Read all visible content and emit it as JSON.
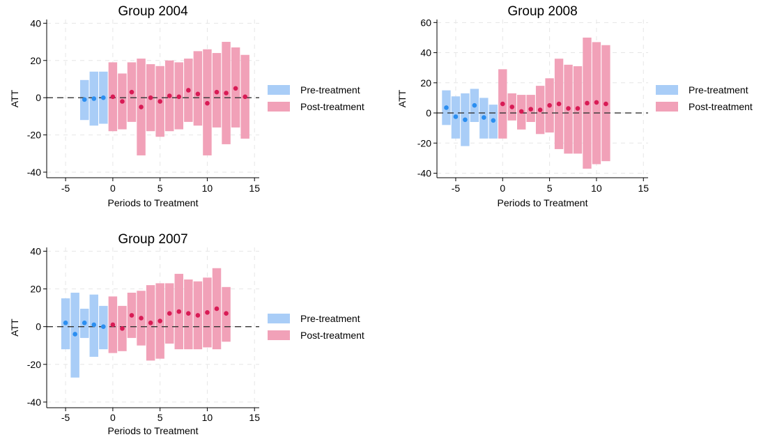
{
  "colors": {
    "pre_bar": "#a9cdf7",
    "post_bar": "#f1a1b8",
    "pre_point": "#2b8ef0",
    "post_point": "#d81b55",
    "grid": "#e6e6e6",
    "axis": "#000000",
    "zero_line": "#333333"
  },
  "chart_data": [
    {
      "type": "bar",
      "title": "Group 2004",
      "xlabel": "Periods to Treatment",
      "ylabel": "ATT",
      "xticks": [
        "-5",
        "0",
        "5",
        "10",
        "15"
      ],
      "yticks": [
        "40",
        "20",
        "0",
        "-20",
        "-40"
      ],
      "xlim": [
        -7,
        15.5
      ],
      "ylim": [
        -43,
        42
      ],
      "grid": true,
      "legend_position": "right",
      "legend": [
        "Pre-treatment",
        "Post-treatment"
      ],
      "series": [
        {
          "name": "Pre-treatment",
          "x": [
            -3,
            -2,
            -1
          ],
          "att": [
            -1,
            -0.5,
            0
          ],
          "ci_low": [
            -12,
            -15,
            -14
          ],
          "ci_high": [
            9.5,
            14,
            14
          ]
        },
        {
          "name": "Post-treatment",
          "x": [
            0,
            1,
            2,
            3,
            4,
            5,
            6,
            7,
            8,
            9,
            10,
            11,
            12,
            13,
            14
          ],
          "att": [
            0.5,
            -2,
            3,
            -5,
            0,
            -2,
            1,
            0.5,
            4,
            2,
            -3,
            3,
            2.5,
            5,
            0.5
          ],
          "ci_low": [
            -18,
            -17,
            -13,
            -31,
            -18,
            -21,
            -18,
            -17,
            -13,
            -15,
            -31,
            -16,
            -25,
            -16,
            -22
          ],
          "ci_high": [
            19,
            13,
            19,
            21,
            18,
            17,
            20,
            19,
            21,
            25,
            26,
            24,
            30,
            27,
            23
          ]
        }
      ]
    },
    {
      "type": "bar",
      "title": "Group 2008",
      "xlabel": "Periods to Treatment",
      "ylabel": "ATT",
      "xticks": [
        "-5",
        "0",
        "5",
        "10",
        "15"
      ],
      "yticks": [
        "60",
        "40",
        "20",
        "0",
        "-20",
        "-40"
      ],
      "xlim": [
        -7,
        15.5
      ],
      "ylim": [
        -43,
        62
      ],
      "grid": true,
      "legend_position": "right",
      "legend": [
        "Pre-treatment",
        "Post-treatment"
      ],
      "series": [
        {
          "name": "Pre-treatment",
          "x": [
            -6,
            -5,
            -4,
            -3,
            -2,
            -1
          ],
          "att": [
            3.5,
            -2.5,
            -4.5,
            5,
            -3,
            -5
          ],
          "ci_low": [
            -8,
            -17,
            -22,
            -6,
            -17,
            -17
          ],
          "ci_high": [
            15,
            11,
            13,
            16,
            10,
            5.5
          ]
        },
        {
          "name": "Post-treatment",
          "x": [
            0,
            1,
            2,
            3,
            4,
            5,
            6,
            7,
            8,
            9,
            10,
            11
          ],
          "att": [
            6,
            4,
            1,
            2.5,
            2,
            5,
            6,
            3,
            3,
            6.5,
            7,
            6
          ],
          "ci_low": [
            -17,
            -5,
            -11,
            -6,
            -14,
            -13,
            -24,
            -27,
            -27,
            -37,
            -34,
            -32
          ],
          "ci_high": [
            29,
            13,
            12,
            12,
            18,
            23,
            36,
            32,
            31,
            50,
            47,
            45
          ]
        }
      ]
    },
    {
      "type": "bar",
      "title": "Group 2007",
      "xlabel": "Periods to Treatment",
      "ylabel": "ATT",
      "xticks": [
        "-5",
        "0",
        "5",
        "10",
        "15"
      ],
      "yticks": [
        "40",
        "20",
        "0",
        "-20",
        "-40"
      ],
      "xlim": [
        -7,
        15.5
      ],
      "ylim": [
        -43,
        42
      ],
      "grid": true,
      "legend_position": "right",
      "legend": [
        "Pre-treatment",
        "Post-treatment"
      ],
      "series": [
        {
          "name": "Pre-treatment",
          "x": [
            -5,
            -4,
            -3,
            -2,
            -1
          ],
          "att": [
            2,
            -4,
            2,
            1,
            0
          ],
          "ci_low": [
            -12,
            -27,
            -6,
            -16,
            -12
          ],
          "ci_high": [
            15,
            18,
            9.5,
            17,
            11
          ]
        },
        {
          "name": "Post-treatment",
          "x": [
            0,
            1,
            2,
            3,
            4,
            5,
            6,
            7,
            8,
            9,
            10,
            11,
            12
          ],
          "att": [
            1,
            -1,
            6,
            4.5,
            2,
            3,
            7,
            8,
            7,
            6,
            7.5,
            9.5,
            7
          ],
          "ci_low": [
            -14,
            -13,
            -6,
            -10,
            -18,
            -17,
            -9,
            -12,
            -12,
            -12,
            -11,
            -12,
            -8
          ],
          "ci_high": [
            16,
            11,
            18,
            19,
            22,
            23,
            23,
            28,
            25,
            24,
            26,
            31,
            21
          ]
        }
      ]
    }
  ]
}
